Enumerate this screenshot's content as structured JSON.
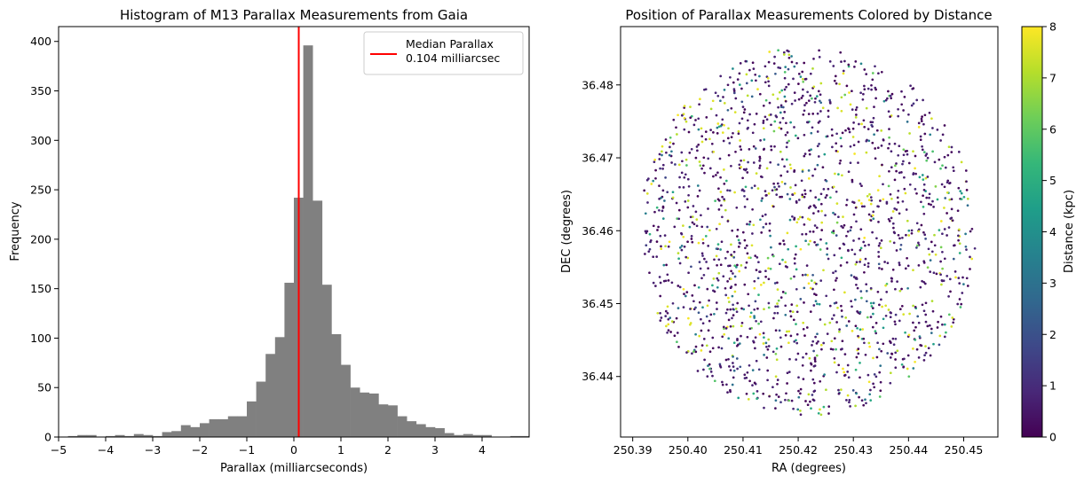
{
  "chart_data": [
    {
      "type": "bar",
      "title": "Histogram of M13 Parallax Measurements from Gaia",
      "xlabel": "Parallax (milliarcseconds)",
      "ylabel": "Frequency",
      "xlim": [
        -5,
        5
      ],
      "ylim": [
        0,
        415
      ],
      "xticks": [
        "-5",
        "-4",
        "-3",
        "-2",
        "-1",
        "0",
        "1",
        "2",
        "3",
        "4"
      ],
      "yticks": [
        "0",
        "50",
        "100",
        "150",
        "200",
        "250",
        "300",
        "350",
        "400"
      ],
      "bar_color": "#808080",
      "bin_width": 0.2,
      "bins": [
        {
          "x": -4.8,
          "value": 1
        },
        {
          "x": -4.6,
          "value": 2
        },
        {
          "x": -4.4,
          "value": 2
        },
        {
          "x": -4.2,
          "value": 0
        },
        {
          "x": -4.0,
          "value": 1
        },
        {
          "x": -3.8,
          "value": 2
        },
        {
          "x": -3.6,
          "value": 1
        },
        {
          "x": -3.4,
          "value": 3
        },
        {
          "x": -3.2,
          "value": 2
        },
        {
          "x": -3.0,
          "value": 1
        },
        {
          "x": -2.8,
          "value": 5
        },
        {
          "x": -2.6,
          "value": 6
        },
        {
          "x": -2.4,
          "value": 12
        },
        {
          "x": -2.2,
          "value": 10
        },
        {
          "x": -2.0,
          "value": 14
        },
        {
          "x": -1.8,
          "value": 18
        },
        {
          "x": -1.6,
          "value": 18
        },
        {
          "x": -1.4,
          "value": 21
        },
        {
          "x": -1.2,
          "value": 21
        },
        {
          "x": -1.0,
          "value": 36
        },
        {
          "x": -0.8,
          "value": 56
        },
        {
          "x": -0.6,
          "value": 84
        },
        {
          "x": -0.4,
          "value": 101
        },
        {
          "x": -0.2,
          "value": 156
        },
        {
          "x": 0.0,
          "value": 242
        },
        {
          "x": 0.2,
          "value": 396
        },
        {
          "x": 0.4,
          "value": 239
        },
        {
          "x": 0.6,
          "value": 154
        },
        {
          "x": 0.8,
          "value": 104
        },
        {
          "x": 1.0,
          "value": 73
        },
        {
          "x": 1.2,
          "value": 50
        },
        {
          "x": 1.4,
          "value": 45
        },
        {
          "x": 1.6,
          "value": 44
        },
        {
          "x": 1.8,
          "value": 33
        },
        {
          "x": 2.0,
          "value": 32
        },
        {
          "x": 2.2,
          "value": 21
        },
        {
          "x": 2.4,
          "value": 16
        },
        {
          "x": 2.6,
          "value": 13
        },
        {
          "x": 2.8,
          "value": 10
        },
        {
          "x": 3.0,
          "value": 9
        },
        {
          "x": 3.2,
          "value": 4
        },
        {
          "x": 3.4,
          "value": 2
        },
        {
          "x": 3.6,
          "value": 3
        },
        {
          "x": 3.8,
          "value": 2
        },
        {
          "x": 4.0,
          "value": 2
        },
        {
          "x": 4.2,
          "value": 0
        },
        {
          "x": 4.4,
          "value": 0
        },
        {
          "x": 4.6,
          "value": 1
        },
        {
          "x": 4.8,
          "value": 1
        }
      ],
      "median_line": {
        "x": 0.104,
        "color": "#ff0000"
      },
      "legend": {
        "position": "top-right",
        "entries": [
          "Median Parallax\n 0.104 milliarcsec"
        ]
      }
    },
    {
      "type": "scatter",
      "title": "Position of Parallax Measurements Colored by Distance",
      "xlabel": "RA (degrees)",
      "ylabel": "DEC (degrees)",
      "xlim": [
        250.3878,
        250.4562
      ],
      "ylim": [
        36.4317,
        36.488
      ],
      "xticks": [
        "250.39",
        "250.40",
        "250.41",
        "250.42",
        "250.43",
        "250.44",
        "250.45"
      ],
      "yticks": [
        "36.44",
        "36.45",
        "36.46",
        "36.47",
        "36.48"
      ],
      "center": {
        "ra": 250.4217,
        "dec": 36.4599
      },
      "radius_ra": 0.0305,
      "radius_dec": 0.0253,
      "point_count": 1800,
      "colorbar": {
        "label": "Distance (kpc)",
        "range": [
          0,
          8
        ],
        "ticks": [
          "0",
          "1",
          "2",
          "3",
          "4",
          "5",
          "6",
          "7",
          "8"
        ],
        "colormap": "viridis",
        "stops": [
          "#440154",
          "#482878",
          "#3e4989",
          "#31688e",
          "#26828e",
          "#1f9e89",
          "#35b779",
          "#6ece58",
          "#b5de2b",
          "#fde725"
        ]
      }
    }
  ]
}
